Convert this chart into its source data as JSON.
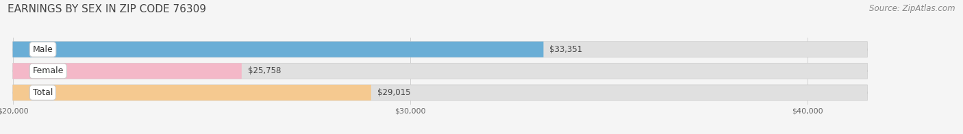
{
  "title": "EARNINGS BY SEX IN ZIP CODE 76309",
  "source": "Source: ZipAtlas.com",
  "categories": [
    "Male",
    "Female",
    "Total"
  ],
  "values": [
    33351,
    25758,
    29015
  ],
  "bar_colors": [
    "#6aaed6",
    "#f4b8c8",
    "#f5c990"
  ],
  "bar_bg_color": "#e0e0e0",
  "value_labels": [
    "$33,351",
    "$25,758",
    "$29,015"
  ],
  "xlim_min": 20000,
  "xlim_max": 41500,
  "xticks": [
    20000,
    30000,
    40000
  ],
  "xtick_labels": [
    "$20,000",
    "$30,000",
    "$40,000"
  ],
  "title_fontsize": 11,
  "source_fontsize": 8.5,
  "label_fontsize": 9,
  "value_fontsize": 8.5,
  "background_color": "#f5f5f5",
  "bar_height": 0.72
}
